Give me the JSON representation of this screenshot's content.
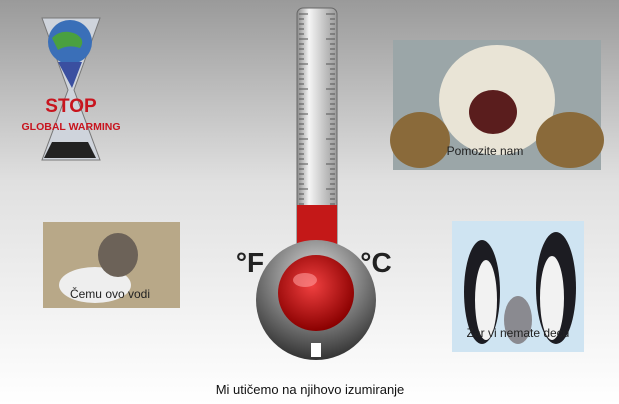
{
  "logo": {
    "line1": "STOP",
    "line2": "GLOBAL WARMING"
  },
  "thermometer": {
    "left_unit": "°F",
    "right_unit": "°C"
  },
  "photos": [
    {
      "caption": "Pomozite nam"
    },
    {
      "caption": "Čemu ovo vodi"
    },
    {
      "caption": "Zar vi nemate decu"
    }
  ],
  "footer": "Mi utičemo na njihovo izumiranje"
}
